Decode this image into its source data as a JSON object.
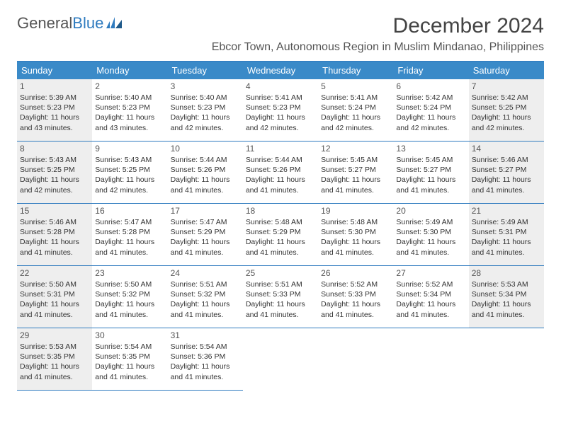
{
  "logo": {
    "text1": "General",
    "text2": "Blue"
  },
  "title": "December 2024",
  "subtitle": "Ebcor Town, Autonomous Region in Muslim Mindanao, Philippines",
  "colors": {
    "header_bg": "#3a8ac8",
    "header_text": "#ffffff",
    "border": "#2f7bbf",
    "shaded_bg": "#eeeeee",
    "text": "#333333",
    "title_text": "#444444"
  },
  "dayHeaders": [
    "Sunday",
    "Monday",
    "Tuesday",
    "Wednesday",
    "Thursday",
    "Friday",
    "Saturday"
  ],
  "weeks": [
    [
      {
        "day": "1",
        "shaded": true,
        "sunrise": "Sunrise: 5:39 AM",
        "sunset": "Sunset: 5:23 PM",
        "daylight": "Daylight: 11 hours and 43 minutes."
      },
      {
        "day": "2",
        "shaded": false,
        "sunrise": "Sunrise: 5:40 AM",
        "sunset": "Sunset: 5:23 PM",
        "daylight": "Daylight: 11 hours and 43 minutes."
      },
      {
        "day": "3",
        "shaded": false,
        "sunrise": "Sunrise: 5:40 AM",
        "sunset": "Sunset: 5:23 PM",
        "daylight": "Daylight: 11 hours and 42 minutes."
      },
      {
        "day": "4",
        "shaded": false,
        "sunrise": "Sunrise: 5:41 AM",
        "sunset": "Sunset: 5:23 PM",
        "daylight": "Daylight: 11 hours and 42 minutes."
      },
      {
        "day": "5",
        "shaded": false,
        "sunrise": "Sunrise: 5:41 AM",
        "sunset": "Sunset: 5:24 PM",
        "daylight": "Daylight: 11 hours and 42 minutes."
      },
      {
        "day": "6",
        "shaded": false,
        "sunrise": "Sunrise: 5:42 AM",
        "sunset": "Sunset: 5:24 PM",
        "daylight": "Daylight: 11 hours and 42 minutes."
      },
      {
        "day": "7",
        "shaded": true,
        "sunrise": "Sunrise: 5:42 AM",
        "sunset": "Sunset: 5:25 PM",
        "daylight": "Daylight: 11 hours and 42 minutes."
      }
    ],
    [
      {
        "day": "8",
        "shaded": true,
        "sunrise": "Sunrise: 5:43 AM",
        "sunset": "Sunset: 5:25 PM",
        "daylight": "Daylight: 11 hours and 42 minutes."
      },
      {
        "day": "9",
        "shaded": false,
        "sunrise": "Sunrise: 5:43 AM",
        "sunset": "Sunset: 5:25 PM",
        "daylight": "Daylight: 11 hours and 42 minutes."
      },
      {
        "day": "10",
        "shaded": false,
        "sunrise": "Sunrise: 5:44 AM",
        "sunset": "Sunset: 5:26 PM",
        "daylight": "Daylight: 11 hours and 41 minutes."
      },
      {
        "day": "11",
        "shaded": false,
        "sunrise": "Sunrise: 5:44 AM",
        "sunset": "Sunset: 5:26 PM",
        "daylight": "Daylight: 11 hours and 41 minutes."
      },
      {
        "day": "12",
        "shaded": false,
        "sunrise": "Sunrise: 5:45 AM",
        "sunset": "Sunset: 5:27 PM",
        "daylight": "Daylight: 11 hours and 41 minutes."
      },
      {
        "day": "13",
        "shaded": false,
        "sunrise": "Sunrise: 5:45 AM",
        "sunset": "Sunset: 5:27 PM",
        "daylight": "Daylight: 11 hours and 41 minutes."
      },
      {
        "day": "14",
        "shaded": true,
        "sunrise": "Sunrise: 5:46 AM",
        "sunset": "Sunset: 5:27 PM",
        "daylight": "Daylight: 11 hours and 41 minutes."
      }
    ],
    [
      {
        "day": "15",
        "shaded": true,
        "sunrise": "Sunrise: 5:46 AM",
        "sunset": "Sunset: 5:28 PM",
        "daylight": "Daylight: 11 hours and 41 minutes."
      },
      {
        "day": "16",
        "shaded": false,
        "sunrise": "Sunrise: 5:47 AM",
        "sunset": "Sunset: 5:28 PM",
        "daylight": "Daylight: 11 hours and 41 minutes."
      },
      {
        "day": "17",
        "shaded": false,
        "sunrise": "Sunrise: 5:47 AM",
        "sunset": "Sunset: 5:29 PM",
        "daylight": "Daylight: 11 hours and 41 minutes."
      },
      {
        "day": "18",
        "shaded": false,
        "sunrise": "Sunrise: 5:48 AM",
        "sunset": "Sunset: 5:29 PM",
        "daylight": "Daylight: 11 hours and 41 minutes."
      },
      {
        "day": "19",
        "shaded": false,
        "sunrise": "Sunrise: 5:48 AM",
        "sunset": "Sunset: 5:30 PM",
        "daylight": "Daylight: 11 hours and 41 minutes."
      },
      {
        "day": "20",
        "shaded": false,
        "sunrise": "Sunrise: 5:49 AM",
        "sunset": "Sunset: 5:30 PM",
        "daylight": "Daylight: 11 hours and 41 minutes."
      },
      {
        "day": "21",
        "shaded": true,
        "sunrise": "Sunrise: 5:49 AM",
        "sunset": "Sunset: 5:31 PM",
        "daylight": "Daylight: 11 hours and 41 minutes."
      }
    ],
    [
      {
        "day": "22",
        "shaded": true,
        "sunrise": "Sunrise: 5:50 AM",
        "sunset": "Sunset: 5:31 PM",
        "daylight": "Daylight: 11 hours and 41 minutes."
      },
      {
        "day": "23",
        "shaded": false,
        "sunrise": "Sunrise: 5:50 AM",
        "sunset": "Sunset: 5:32 PM",
        "daylight": "Daylight: 11 hours and 41 minutes."
      },
      {
        "day": "24",
        "shaded": false,
        "sunrise": "Sunrise: 5:51 AM",
        "sunset": "Sunset: 5:32 PM",
        "daylight": "Daylight: 11 hours and 41 minutes."
      },
      {
        "day": "25",
        "shaded": false,
        "sunrise": "Sunrise: 5:51 AM",
        "sunset": "Sunset: 5:33 PM",
        "daylight": "Daylight: 11 hours and 41 minutes."
      },
      {
        "day": "26",
        "shaded": false,
        "sunrise": "Sunrise: 5:52 AM",
        "sunset": "Sunset: 5:33 PM",
        "daylight": "Daylight: 11 hours and 41 minutes."
      },
      {
        "day": "27",
        "shaded": false,
        "sunrise": "Sunrise: 5:52 AM",
        "sunset": "Sunset: 5:34 PM",
        "daylight": "Daylight: 11 hours and 41 minutes."
      },
      {
        "day": "28",
        "shaded": true,
        "sunrise": "Sunrise: 5:53 AM",
        "sunset": "Sunset: 5:34 PM",
        "daylight": "Daylight: 11 hours and 41 minutes."
      }
    ],
    [
      {
        "day": "29",
        "shaded": true,
        "sunrise": "Sunrise: 5:53 AM",
        "sunset": "Sunset: 5:35 PM",
        "daylight": "Daylight: 11 hours and 41 minutes."
      },
      {
        "day": "30",
        "shaded": false,
        "sunrise": "Sunrise: 5:54 AM",
        "sunset": "Sunset: 5:35 PM",
        "daylight": "Daylight: 11 hours and 41 minutes."
      },
      {
        "day": "31",
        "shaded": false,
        "sunrise": "Sunrise: 5:54 AM",
        "sunset": "Sunset: 5:36 PM",
        "daylight": "Daylight: 11 hours and 41 minutes."
      },
      null,
      null,
      null,
      null
    ]
  ]
}
